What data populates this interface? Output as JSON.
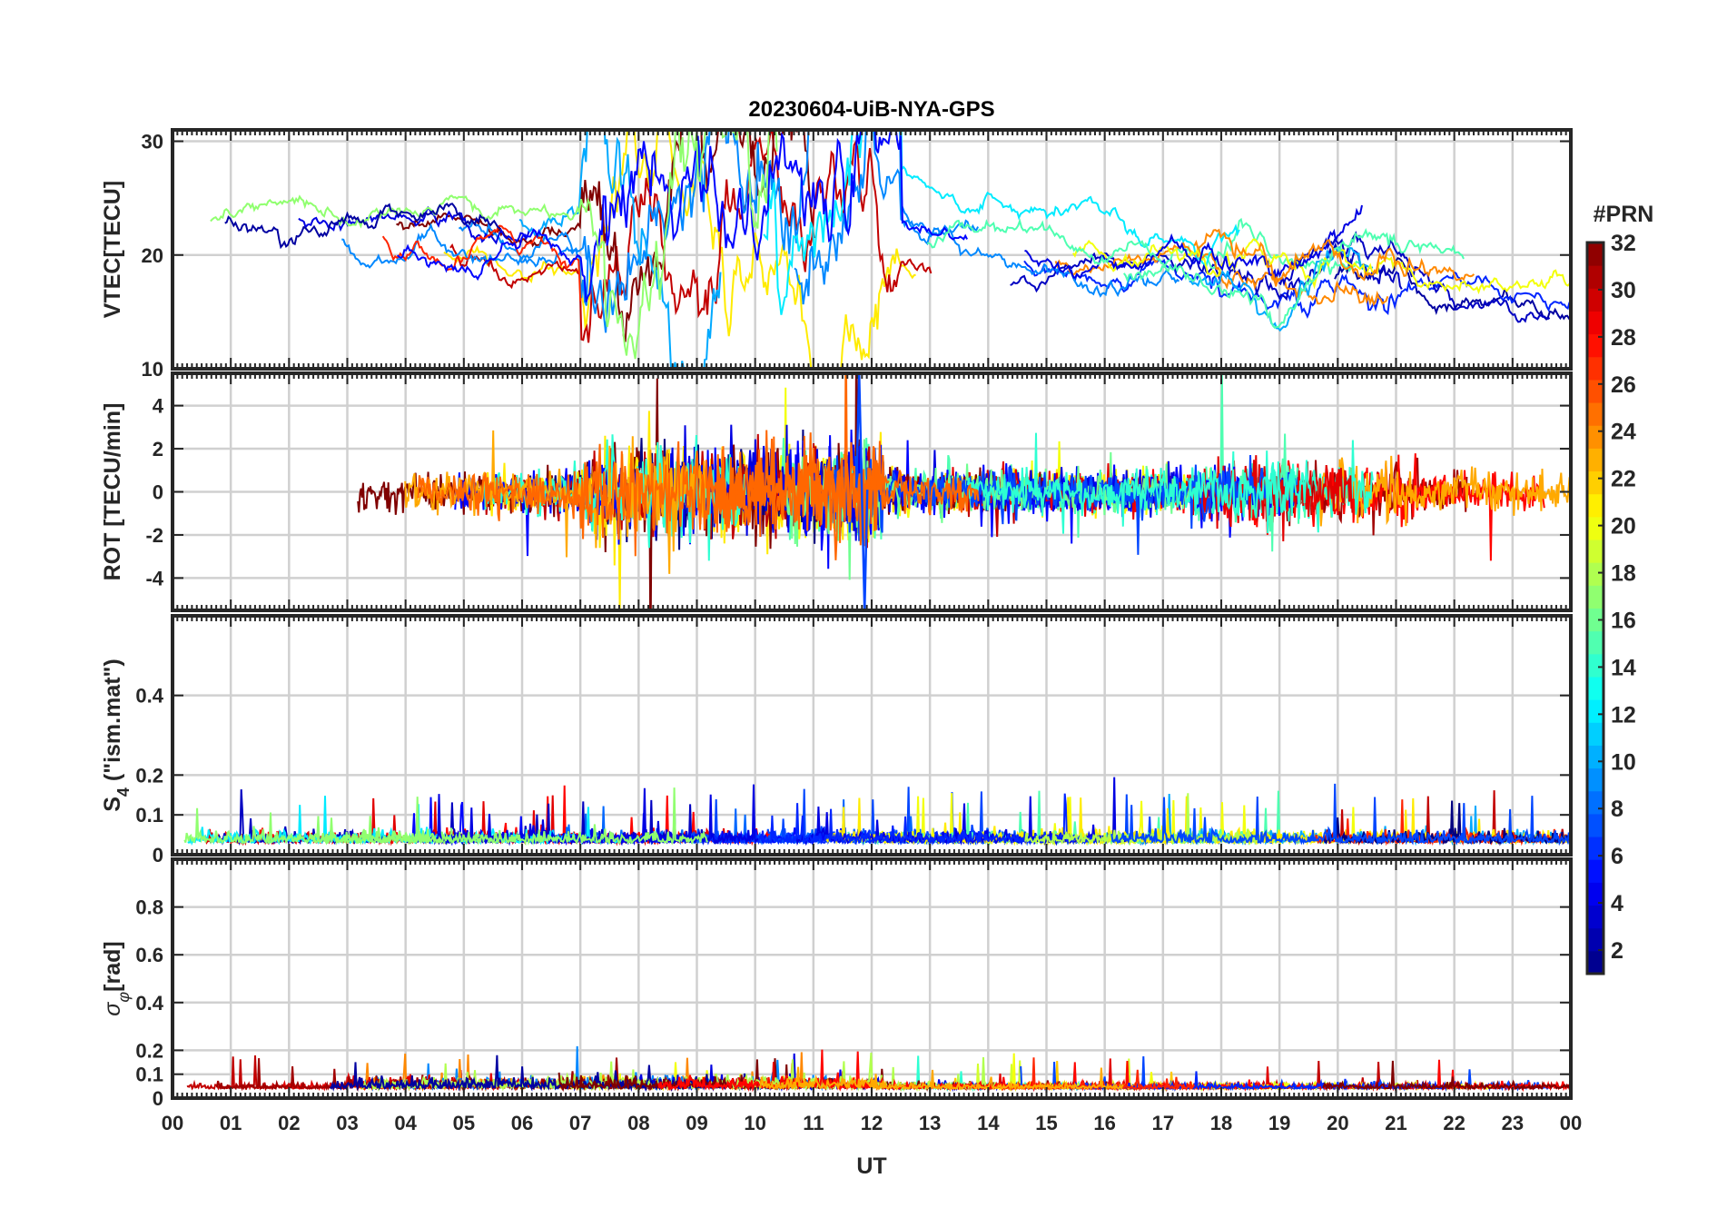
{
  "chart_data": {
    "type": "line",
    "title": "20230604-UiB-NYA-GPS",
    "xlabel": "UT",
    "x_tick_labels": [
      "00",
      "01",
      "02",
      "03",
      "04",
      "05",
      "06",
      "07",
      "08",
      "09",
      "10",
      "11",
      "12",
      "13",
      "14",
      "15",
      "16",
      "17",
      "18",
      "19",
      "20",
      "21",
      "22",
      "23",
      "00"
    ],
    "xlim_hours": [
      0,
      24
    ],
    "grid": true,
    "colorbar": {
      "label": "#PRN",
      "range": [
        1,
        32
      ],
      "tick_labels": [
        "2",
        "4",
        "6",
        "8",
        "10",
        "12",
        "14",
        "16",
        "18",
        "20",
        "22",
        "24",
        "26",
        "28",
        "30",
        "32"
      ],
      "colormap": "jet",
      "colormap_stops": [
        "#000080",
        "#0000ff",
        "#0080ff",
        "#00ffff",
        "#80ff80",
        "#ffff00",
        "#ff8000",
        "#ff0000",
        "#800000"
      ]
    },
    "panels": [
      {
        "name": "vtec",
        "ylabel": "VTEC[TECU]",
        "ylim": [
          10,
          31
        ],
        "y_ticks": [
          10,
          20,
          30
        ],
        "y_tick_labels": [
          "10",
          "20",
          "30"
        ],
        "features": "baseline ~20-23 TECU 00-07 UT; enhancement to ~30 TECU 07-11 UT with dips to ~11 TECU near 11-12 UT; ~18-20 TECU 13-19 UT; peak ~24 TECU near 20.5 UT; ~15-18 TECU late"
      },
      {
        "name": "rot",
        "ylabel": "ROT [TECU/min]",
        "ylim": [
          -5.5,
          5.5
        ],
        "y_ticks": [
          -4,
          -2,
          0,
          2,
          4
        ],
        "y_tick_labels": [
          "-4",
          "-2",
          "0",
          "2",
          "4"
        ],
        "features": "fluctuations within +/-1 TECU/min, stronger 07-12 UT and 18-21 UT; spike to +5/-5 near 11.8 UT"
      },
      {
        "name": "s4",
        "ylabel": "S4 (\"ism.mat\")",
        "ylabel_parts": [
          "S",
          "4",
          " (\"ism.mat\")"
        ],
        "ylim": [
          0,
          0.6
        ],
        "y_ticks": [
          0,
          0.1,
          0.2,
          0.4
        ],
        "y_tick_labels": [
          "0",
          "0.1",
          "0.2",
          "0.4"
        ],
        "features": "baseline ~0.02-0.05 with peaks up to ~0.2"
      },
      {
        "name": "sigma_phi",
        "ylabel": "σφ[rad]",
        "ylabel_parts": [
          "σ",
          "φ",
          "[rad]"
        ],
        "ylim": [
          0,
          1.0
        ],
        "y_ticks": [
          0,
          0.1,
          0.2,
          0.4,
          0.6,
          0.8
        ],
        "y_tick_labels": [
          "0",
          "0.1",
          "0.2",
          "0.4",
          "0.6",
          "0.8"
        ],
        "features": "baseline ~0.04; peaks ~0.2 during 03-12 UT"
      }
    ]
  }
}
